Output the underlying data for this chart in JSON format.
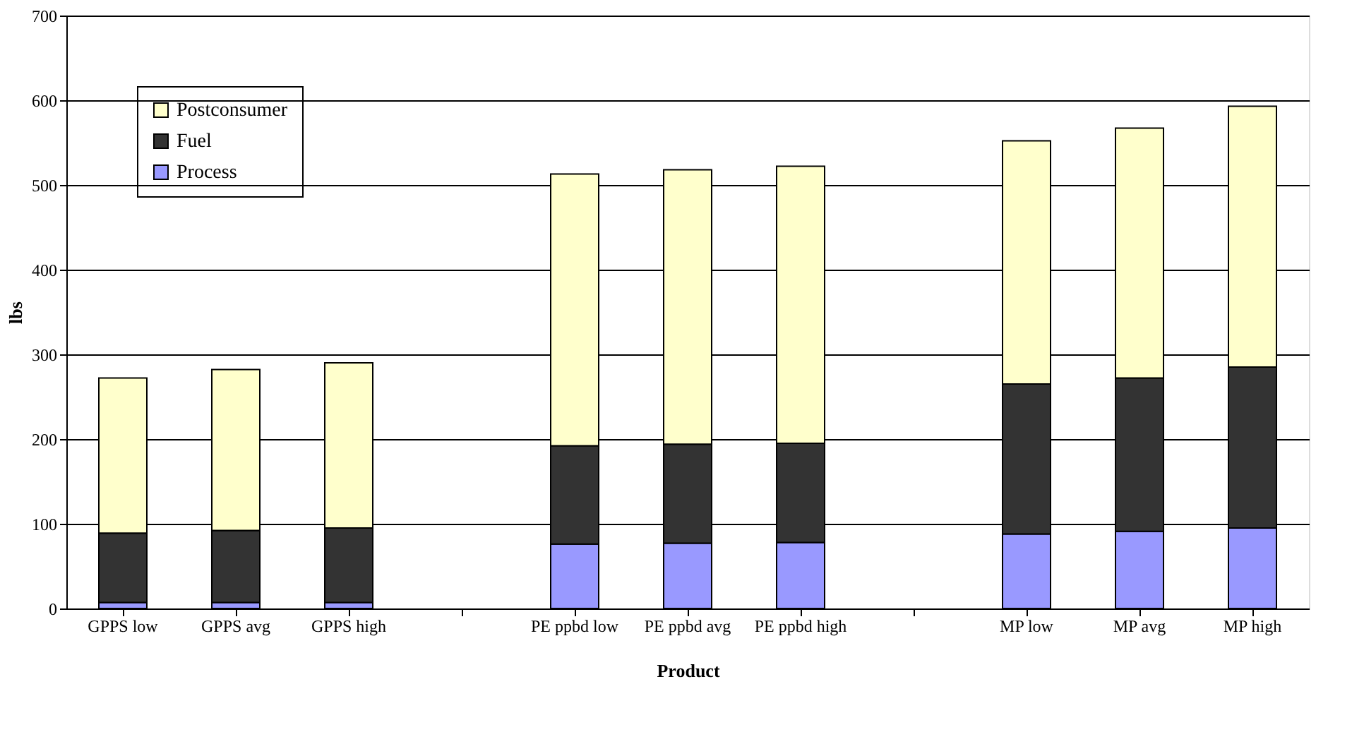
{
  "chart_data": {
    "type": "bar",
    "stacked": true,
    "xlabel": "Product",
    "ylabel": "lbs",
    "categories": [
      "GPPS low",
      "GPPS avg",
      "GPPS high",
      null,
      "PE ppbd low",
      "PE ppbd avg",
      "PE ppbd high",
      null,
      "MP low",
      "MP avg",
      "MP high"
    ],
    "series": [
      {
        "name": "Process",
        "color": "#9999ff",
        "values": [
          7,
          7,
          7,
          null,
          76,
          77,
          78,
          null,
          88,
          91,
          95
        ]
      },
      {
        "name": "Fuel",
        "color": "#333333",
        "values": [
          82,
          85,
          88,
          null,
          116,
          117,
          117,
          null,
          177,
          181,
          190
        ]
      },
      {
        "name": "Postconsumer",
        "color": "#ffffcc",
        "values": [
          183,
          190,
          195,
          null,
          321,
          324,
          327,
          null,
          287,
          295,
          308
        ]
      }
    ],
    "ylim": [
      0,
      700
    ],
    "yticks": [
      0,
      100,
      200,
      300,
      400,
      500,
      600,
      700
    ],
    "grid": "y",
    "legend": "top left"
  }
}
